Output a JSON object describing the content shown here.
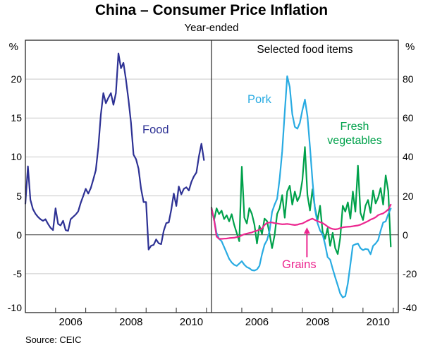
{
  "title": "China – Consumer Price Inflation",
  "subtitle": "Year-ended",
  "source": "Source: CEIC",
  "panels": {
    "right_heading": "Selected food items"
  },
  "labels": {
    "food": "Food",
    "pork": "Pork",
    "veg_line1": "Fresh",
    "veg_line2": "vegetables",
    "grains": "Grains"
  },
  "axes": {
    "left_unit": "%",
    "right_unit": "%",
    "left_ticks": [
      "20",
      "15",
      "10",
      "5",
      "0",
      "-5",
      "-10"
    ],
    "left_tick_values": [
      20,
      15,
      10,
      5,
      0,
      -5,
      -10
    ],
    "right_ticks": [
      "80",
      "60",
      "40",
      "20",
      "0",
      "-20",
      "-40"
    ],
    "right_tick_values": [
      80,
      60,
      40,
      20,
      0,
      -20,
      -40
    ],
    "x_year_labels": [
      "2006",
      "2008",
      "2010"
    ],
    "x_label_month_centers": [
      18,
      42,
      66
    ],
    "x_tick_months": [
      12,
      24,
      36,
      48,
      60,
      72
    ],
    "left_range": [
      -10,
      25
    ],
    "right_range": [
      -40,
      100
    ]
  },
  "colors": {
    "food": "#2D3194",
    "pork": "#29ABE2",
    "vegetables": "#00A14B",
    "grains": "#EC268F",
    "grid": "#C9C9C9",
    "zero_line": "#3A3A3A",
    "frame": "#262626"
  },
  "chart_data": [
    {
      "type": "line",
      "panel": "left",
      "title": "",
      "ylabel": "%",
      "ylim": [
        -10,
        25
      ],
      "x": "monthly, Jan 2005 - Dec 2010",
      "x_tick_years": [
        2006,
        2008,
        2010
      ],
      "grid": "horizontal only",
      "series": [
        {
          "name": "Food",
          "color": "#2D3194",
          "values": [
            4.0,
            8.8,
            4.5,
            3.3,
            2.7,
            2.3,
            2.0,
            1.8,
            2.0,
            1.4,
            0.9,
            0.6,
            3.4,
            1.4,
            1.2,
            1.8,
            0.6,
            0.5,
            2.0,
            2.3,
            2.6,
            3.0,
            4.1,
            5.0,
            5.9,
            5.3,
            6.0,
            7.1,
            8.3,
            11.3,
            15.4,
            18.2,
            16.9,
            17.6,
            18.2,
            16.7,
            18.2,
            23.3,
            21.4,
            22.1,
            19.9,
            17.3,
            14.4,
            10.3,
            9.7,
            8.5,
            5.9,
            4.2,
            4.2,
            -1.9,
            -1.4,
            -1.3,
            -0.6,
            -1.1,
            -1.2,
            0.5,
            1.5,
            1.6,
            3.2,
            5.3,
            3.7,
            6.2,
            5.2,
            5.9,
            6.1,
            5.7,
            6.8,
            7.5,
            8.0,
            10.1,
            11.7,
            9.6
          ]
        }
      ]
    },
    {
      "type": "line",
      "panel": "right",
      "title": "Selected food items",
      "ylabel": "%",
      "ylim": [
        -40,
        100
      ],
      "x": "monthly, Jan 2005 - Dec 2010",
      "x_tick_years": [
        2006,
        2008,
        2010
      ],
      "grid": "horizontal only",
      "annotation_arrow": {
        "series": "Grains",
        "x_month": 37.8,
        "tail_value": -11.5,
        "tip_value": 3.5
      },
      "series": [
        {
          "name": "Fresh vegetables",
          "color": "#00A14B",
          "values": [
            14.0,
            7.5,
            13.6,
            10.6,
            12.4,
            8.1,
            10.0,
            6.9,
            10.6,
            5.1,
            0.9,
            -3.3,
            35.0,
            8.8,
            5.8,
            13.7,
            10.7,
            5.2,
            -4.5,
            4.6,
            0.4,
            8.3,
            7.0,
            0.4,
            -6.9,
            -0.2,
            10.7,
            13.7,
            20.4,
            8.8,
            22.2,
            25.2,
            15.5,
            22.2,
            17.3,
            20.0,
            28.0,
            45.1,
            20.4,
            12.5,
            23.4,
            13.7,
            7.6,
            14.9,
            1.6,
            -2.1,
            3.4,
            -5.7,
            1.0,
            -6.9,
            -9.9,
            -1.5,
            14.9,
            11.9,
            16.7,
            8.3,
            22.2,
            11.9,
            35.5,
            11.3,
            7.6,
            14.9,
            17.9,
            11.3,
            22.8,
            16.1,
            19.1,
            24.0,
            15.5,
            30.5,
            22.5,
            -6.0
          ]
        },
        {
          "name": "Pork",
          "color": "#29ABE2",
          "values": [
            13.0,
            8.1,
            1.0,
            -2.1,
            -3.3,
            -6.3,
            -9.3,
            -12.4,
            -14.2,
            -15.4,
            -16.0,
            -14.8,
            -13.6,
            -15.4,
            -16.6,
            -17.2,
            -18.2,
            -18.4,
            -17.8,
            -16.0,
            -10.0,
            -5.1,
            -2.7,
            2.0,
            11.8,
            15.5,
            18.5,
            29.0,
            43.0,
            63.0,
            81.5,
            76.0,
            62.0,
            55.5,
            54.5,
            57.5,
            64.0,
            69.5,
            61.0,
            45.0,
            28.0,
            13.0,
            6.0,
            2.2,
            0.2,
            -4.9,
            -11.5,
            -12.8,
            -17.5,
            -21.9,
            -26.0,
            -30.2,
            -32.2,
            -31.6,
            -25.0,
            -15.2,
            -5.5,
            -4.9,
            -4.5,
            -6.9,
            -7.9,
            -7.3,
            -7.5,
            -10.0,
            -5.7,
            -4.5,
            -2.7,
            2.1,
            6.3,
            6.9,
            10.6,
            13.5
          ]
        },
        {
          "name": "Grains",
          "color": "#EC268F",
          "values": [
            13.6,
            8.0,
            -0.9,
            -2.1,
            -2.1,
            -2.0,
            -1.9,
            -1.7,
            -1.6,
            -1.5,
            -1.2,
            -0.9,
            -0.3,
            0.3,
            0.6,
            0.9,
            1.2,
            1.8,
            2.1,
            2.6,
            3.2,
            5.0,
            6.1,
            6.3,
            6.3,
            6.0,
            5.8,
            5.6,
            5.4,
            5.5,
            5.6,
            5.4,
            5.2,
            5.0,
            5.2,
            5.6,
            5.8,
            6.5,
            7.2,
            7.8,
            8.3,
            7.6,
            7.0,
            6.5,
            6.0,
            5.2,
            4.2,
            3.4,
            3.0,
            2.8,
            3.0,
            3.4,
            3.8,
            4.0,
            4.1,
            4.2,
            4.4,
            4.6,
            4.8,
            5.2,
            5.8,
            6.4,
            7.0,
            7.8,
            8.3,
            9.0,
            10.1,
            10.6,
            11.0,
            11.9,
            13.0,
            15.5
          ]
        }
      ]
    }
  ]
}
